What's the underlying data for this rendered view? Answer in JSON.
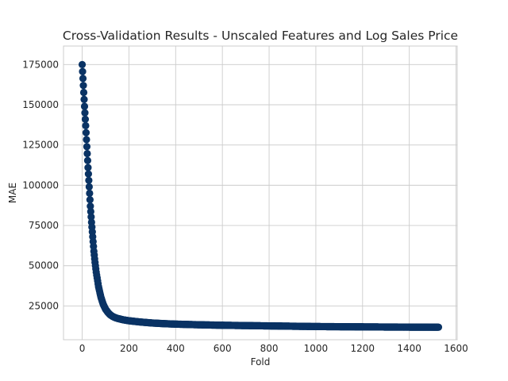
{
  "chart_data": {
    "type": "line",
    "title": "Cross-Validation Results - Unscaled Features and Log Sales Price",
    "xlabel": "Fold",
    "ylabel": "MAE",
    "xlim": [
      -80,
      1605
    ],
    "ylim": [
      4000,
      186500
    ],
    "x_ticks": [
      0,
      200,
      400,
      600,
      800,
      1000,
      1200,
      1400,
      1600
    ],
    "y_ticks": [
      25000,
      50000,
      75000,
      100000,
      125000,
      150000,
      175000
    ],
    "x_tick_labels": [
      "0",
      "200",
      "400",
      "600",
      "800",
      "1000",
      "1200",
      "1400",
      "1600"
    ],
    "y_tick_labels": [
      "25000",
      "50000",
      "75000",
      "100000",
      "125000",
      "150000",
      "175000"
    ],
    "grid": true,
    "marker": "circle",
    "color": "#0a3364",
    "series": [
      {
        "name": "",
        "x": [
          0,
          5,
          10,
          15,
          20,
          25,
          30,
          35,
          40,
          45,
          50,
          55,
          60,
          70,
          80,
          90,
          100,
          110,
          120,
          130,
          140,
          150,
          175,
          200,
          250,
          300,
          350,
          400,
          450,
          500,
          600,
          700,
          800,
          900,
          1000,
          1100,
          1200,
          1300,
          1400,
          1500,
          1525
        ],
        "y": [
          175000,
          162000,
          149000,
          137000,
          124000,
          111000,
          99000,
          87000,
          77000,
          68000,
          59000,
          52000,
          46000,
          37000,
          30500,
          26000,
          23000,
          21000,
          19500,
          18500,
          17800,
          17300,
          16400,
          15800,
          15000,
          14400,
          14000,
          13700,
          13500,
          13300,
          13000,
          12800,
          12600,
          12400,
          12200,
          12100,
          12000,
          11900,
          11850,
          11800,
          11800
        ]
      }
    ]
  }
}
